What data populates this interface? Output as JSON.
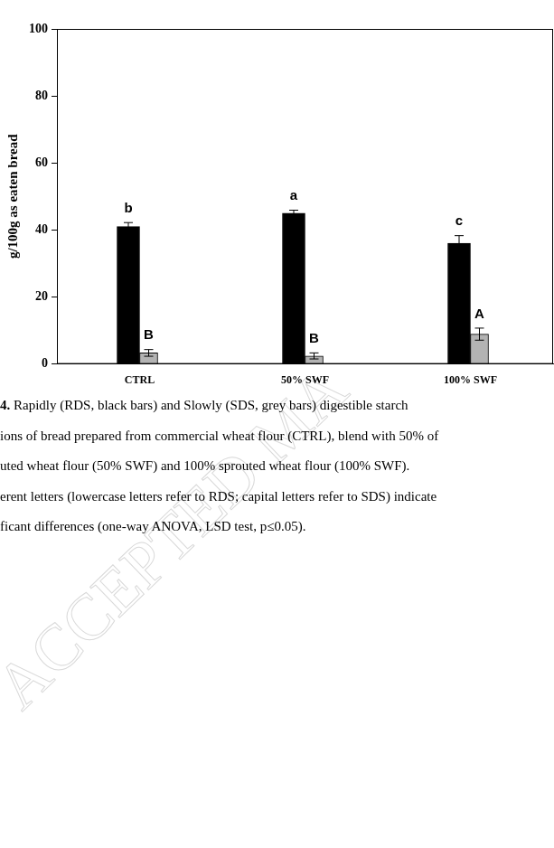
{
  "chart_data": {
    "type": "bar",
    "categories": [
      "CTRL",
      "50% SWF",
      "100% SWF"
    ],
    "series": [
      {
        "name": "RDS",
        "color": "#000000",
        "values": [
          41,
          45,
          36
        ],
        "errors": [
          1.2,
          0.9,
          2.3
        ],
        "letters": [
          "b",
          "a",
          "c"
        ]
      },
      {
        "name": "SDS",
        "color": "#b3b3b3",
        "values": [
          3.3,
          2.4,
          8.9
        ],
        "errors": [
          1.0,
          0.9,
          1.8
        ],
        "letters": [
          "B",
          "B",
          "A"
        ]
      }
    ],
    "y_label": "g/100g as eaten bread",
    "ylim": [
      0,
      100
    ],
    "yticks": [
      0,
      20,
      40,
      60,
      80,
      100
    ],
    "grid": false
  },
  "caption_label": "4.",
  "caption": [
    " Rapidly (RDS, black bars) and Slowly (SDS, grey bars) digestible starch",
    "ions of bread prepared from commercial wheat flour (CTRL), blend with 50% of",
    "uted wheat flour (50% SWF) and 100% sprouted wheat flour (100% SWF).",
    "erent letters (lowercase letters refer to RDS; capital letters refer to SDS) indicate",
    "ficant differences (one-way ANOVA, LSD test, p≤0.05)."
  ],
  "watermark": "ACCEPTED MA"
}
